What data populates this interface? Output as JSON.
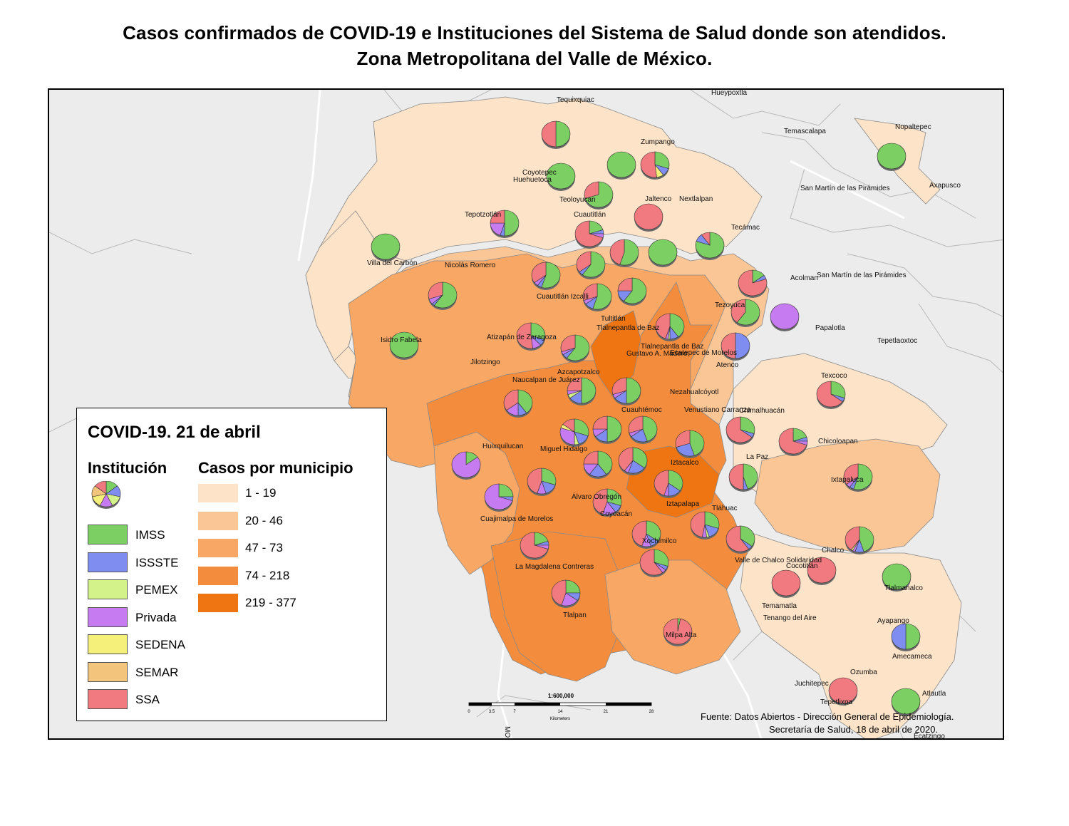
{
  "title": {
    "line1": "Casos confirmados de COVID-19 e Instituciones del Sistema de Salud donde son atendidos.",
    "line2": "Zona Metropolitana del Valle de México."
  },
  "legend": {
    "title": "COVID-19. 21 de abril",
    "institution_header": "Institución",
    "cases_header": "Casos por municipio",
    "institutions": [
      {
        "label": "IMSS",
        "color": "#7ccf62"
      },
      {
        "label": "ISSSTE",
        "color": "#7f8df0"
      },
      {
        "label": "PEMEX",
        "color": "#d4f28a"
      },
      {
        "label": "Privada",
        "color": "#c77bf0"
      },
      {
        "label": "SEDENA",
        "color": "#f5f07a"
      },
      {
        "label": "SEMAR",
        "color": "#f2c47c"
      },
      {
        "label": "SSA",
        "color": "#f07a80"
      }
    ],
    "case_classes": [
      {
        "label": "1 - 19",
        "color": "#fde3c8"
      },
      {
        "label": "20 - 46",
        "color": "#fbc695"
      },
      {
        "label": "47 - 73",
        "color": "#f9a765"
      },
      {
        "label": "74 - 218",
        "color": "#f48c3d"
      },
      {
        "label": "219 - 377",
        "color": "#ee7512"
      }
    ]
  },
  "scale": {
    "ratio": "1:600,000",
    "ticks": [
      "0",
      "3.5",
      "7",
      "14",
      "21",
      "28"
    ],
    "unit": "Kilometers"
  },
  "source": {
    "line1": "Fuente: Datos Abiertos - Dirección General de Epidemiología.",
    "line2": "Secretaría de Salud, 18 de abril de 2020."
  },
  "place_names": {
    "tequixquiac": "Tequixquiac",
    "hueypoxtla": "Hueypoxtla",
    "temascalapa": "Temascalapa",
    "nopaltepec": "Nopaltepec",
    "zumpango": "Zumpango",
    "coyotepec": "Coyotepec",
    "huehuetoca": "Huehuetoca",
    "teoloyucan": "Teoloyucan",
    "jaltenco": "Jaltenco",
    "nextlalpan": "Nextlalpan",
    "san_martin_1": "San Martín de las Pirámides",
    "axapusco": "Axapusco",
    "tepotzotlan": "Tepotzotlán",
    "cuautitlan": "Cuautitlán",
    "tecamac": "Tecámac",
    "villa_del_carbon": "Villa del Carbón",
    "nicolas_romero": "Nicolás Romero",
    "acolman": "Acolman",
    "san_martin_2": "San Martín de las Pirámides",
    "cuautitlan_izcalli": "Cuautitlán Izcalli",
    "tezoyuca": "Tezoyuca",
    "papalotla": "Papalotla",
    "tultitlan": "Tultitlán",
    "tlalnepantla_1": "Tlalnepantla de Baz",
    "tlalnepantla_2": "Tlalnepantla de Baz",
    "atizapan": "Atizapán de Zaragoza",
    "ecatepec": "Ecatepec de Morelos",
    "tepetlaoxtoc": "Tepetlaoxtoc",
    "isidro_fabela": "Isidro Fabela",
    "jilotzingo": "Jilotzingo",
    "gustavo_madero": "Gustavo A. Madero",
    "atenco": "Atenco",
    "naucalpan": "Naucalpan de Juárez",
    "azcapotzalco": "Azcapotzalco",
    "texcoco": "Texcoco",
    "nezahualcoyotl": "Nezahualcóyotl",
    "cuauhtemoc": "Cuauhtémoc",
    "venustiano_carranza": "Venustiano Carranza",
    "chimalhuacan": "Chimalhuacán",
    "huixquilucan": "Huixquilucan",
    "miguel_hidalgo": "Miguel Hidalgo",
    "chicoloapan": "Chicoloapan",
    "la_paz": "La Paz",
    "iztacalco": "Iztacalco",
    "ixtapaluca": "Ixtapaluca",
    "alvaro_obregon": "Álvaro Obregón",
    "iztapalapa": "Iztapalapa",
    "cuajimalpa": "Cuajimalpa de Morelos",
    "coyoacan": "Coyoacán",
    "tlahuac": "Tláhuac",
    "xochimilco": "Xochimilco",
    "chalco": "Chalco",
    "magdalena": "La Magdalena Contreras",
    "valle_chalco": "Valle de Chalco Solidaridad",
    "cocotitlan": "Cocotitlán",
    "tlalmanalco": "Tlalmanalco",
    "tlalpan": "Tlalpan",
    "temamatla": "Temamatla",
    "tenango": "Tenango del Aire",
    "ayapango": "Ayapango",
    "milpa_alta": "Milpa Alta",
    "amecameca": "Amecameca",
    "ozumba": "Ozumba",
    "juchitepec": "Juchitepec",
    "atlautla": "Atlautla",
    "tepetlixpa": "Tepetlixpa",
    "ecatzingo": "Ecatzingo",
    "road": "MOR"
  },
  "municipalities": [
    {
      "key": "tequixquiac",
      "cls": 0,
      "shares": [
        0.5,
        0,
        0,
        0,
        0,
        0,
        0.5
      ]
    },
    {
      "key": "zumpango_a",
      "cls": 0,
      "shares": [
        1,
        0,
        0,
        0,
        0,
        0,
        0
      ]
    },
    {
      "key": "zumpango_b",
      "cls": 1,
      "shares": [
        0.3,
        0.1,
        0,
        0,
        0.08,
        0,
        0.52
      ]
    },
    {
      "key": "nopaltepec",
      "cls": 0,
      "shares": [
        1,
        0,
        0,
        0,
        0,
        0,
        0
      ]
    },
    {
      "key": "coyotepec",
      "cls": 0,
      "shares": [
        1,
        0,
        0,
        0,
        0,
        0,
        0
      ]
    },
    {
      "key": "teoloyucan",
      "cls": 0,
      "shares": [
        0.7,
        0,
        0,
        0,
        0,
        0,
        0.3
      ]
    },
    {
      "key": "jaltenco",
      "cls": 0,
      "shares": [
        0,
        0,
        0,
        0,
        0,
        0,
        1
      ]
    },
    {
      "key": "tepotzotlan",
      "cls": 0,
      "shares": [
        0.5,
        0.05,
        0,
        0.2,
        0,
        0,
        0.25
      ]
    },
    {
      "key": "cuautitlan",
      "cls": 1,
      "shares": [
        0.2,
        0.05,
        0,
        0.05,
        0,
        0,
        0.7
      ]
    },
    {
      "key": "tecamac",
      "cls": 2,
      "shares": [
        0.8,
        0.1,
        0,
        0,
        0,
        0,
        0.1
      ]
    },
    {
      "key": "villa_del_carbon",
      "cls": 0,
      "shares": [
        1,
        0,
        0,
        0,
        0,
        0,
        0
      ]
    },
    {
      "key": "nextlalpan_a",
      "cls": 0,
      "shares": [
        0.55,
        0,
        0,
        0,
        0,
        0,
        0.45
      ]
    },
    {
      "key": "nextlalpan_b",
      "cls": 0,
      "shares": [
        1,
        0,
        0,
        0,
        0,
        0,
        0
      ]
    },
    {
      "key": "nicolas_romero",
      "cls": 2,
      "shares": [
        0.6,
        0.03,
        0,
        0.07,
        0,
        0,
        0.3
      ]
    },
    {
      "key": "cuautitlan_izcalli",
      "cls": 3,
      "shares": [
        0.55,
        0.05,
        0,
        0.05,
        0,
        0,
        0.35
      ]
    },
    {
      "key": "tultitlan_a",
      "cls": 3,
      "shares": [
        0.6,
        0.05,
        0,
        0,
        0,
        0,
        0.35
      ]
    },
    {
      "key": "tultitlan_b",
      "cls": 3,
      "shares": [
        0.6,
        0.15,
        0,
        0,
        0,
        0,
        0.25
      ]
    },
    {
      "key": "tultitlan_c",
      "cls": 3,
      "shares": [
        0.55,
        0.1,
        0,
        0.05,
        0,
        0,
        0.3
      ]
    },
    {
      "key": "acolman",
      "cls": 0,
      "shares": [
        0.15,
        0.05,
        0,
        0,
        0,
        0,
        0.8
      ]
    },
    {
      "key": "tezoyuca",
      "cls": 0,
      "shares": [
        0.6,
        0,
        0,
        0,
        0,
        0,
        0.4
      ]
    },
    {
      "key": "papalotla",
      "cls": 0,
      "shares": [
        0,
        0,
        0,
        1,
        0,
        0,
        0
      ]
    },
    {
      "key": "atizapan",
      "cls": 3,
      "shares": [
        0.3,
        0.08,
        0,
        0.1,
        0,
        0,
        0.52
      ]
    },
    {
      "key": "tlalnepantla",
      "cls": 3,
      "shares": [
        0.6,
        0.06,
        0,
        0.04,
        0,
        0,
        0.3
      ]
    },
    {
      "key": "ecatepec",
      "cls": 3,
      "shares": [
        0.4,
        0.1,
        0.02,
        0.03,
        0,
        0,
        0.45
      ]
    },
    {
      "key": "atenco",
      "cls": 0,
      "shares": [
        0,
        0.5,
        0,
        0,
        0,
        0,
        0.5
      ]
    },
    {
      "key": "isidro_fabela",
      "cls": 0,
      "shares": [
        1,
        0,
        0,
        0,
        0,
        0,
        0
      ]
    },
    {
      "key": "naucalpan",
      "cls": 3,
      "shares": [
        0.4,
        0.1,
        0,
        0.15,
        0,
        0,
        0.35
      ]
    },
    {
      "key": "azcapotzalco",
      "cls": 3,
      "shares": [
        0.5,
        0.15,
        0.05,
        0.05,
        0,
        0,
        0.25
      ]
    },
    {
      "key": "gustavo_madero",
      "cls": 4,
      "shares": [
        0.5,
        0.15,
        0,
        0.05,
        0,
        0,
        0.3
      ]
    },
    {
      "key": "texcoco",
      "cls": 1,
      "shares": [
        0.3,
        0.05,
        0,
        0,
        0,
        0,
        0.65
      ]
    },
    {
      "key": "miguel_hidalgo_a",
      "cls": 3,
      "shares": [
        0.3,
        0.15,
        0.05,
        0.3,
        0.05,
        0,
        0.15
      ]
    },
    {
      "key": "cuauhtemoc_a",
      "cls": 3,
      "shares": [
        0.5,
        0.15,
        0,
        0.1,
        0,
        0,
        0.25
      ]
    },
    {
      "key": "cuauhtemoc_b",
      "cls": 3,
      "shares": [
        0.45,
        0.2,
        0,
        0.05,
        0,
        0,
        0.3
      ]
    },
    {
      "key": "venustiano_carranza",
      "cls": 3,
      "shares": [
        0.45,
        0.25,
        0,
        0,
        0,
        0,
        0.3
      ]
    },
    {
      "key": "chimalhuacan",
      "cls": 2,
      "shares": [
        0.3,
        0.05,
        0,
        0,
        0,
        0,
        0.65
      ]
    },
    {
      "key": "huixquilucan",
      "cls": 2,
      "shares": [
        0.15,
        0,
        0,
        0.85,
        0,
        0,
        0
      ]
    },
    {
      "key": "chicoloapan",
      "cls": 1,
      "shares": [
        0.2,
        0.05,
        0,
        0.05,
        0,
        0,
        0.7
      ]
    },
    {
      "key": "la_paz",
      "cls": 1,
      "shares": [
        0.45,
        0.05,
        0,
        0,
        0,
        0,
        0.5
      ]
    },
    {
      "key": "benito_juarez",
      "cls": 3,
      "shares": [
        0.4,
        0.2,
        0,
        0.15,
        0,
        0,
        0.25
      ]
    },
    {
      "key": "iztacalco",
      "cls": 3,
      "shares": [
        0.35,
        0.2,
        0,
        0.05,
        0,
        0,
        0.4
      ]
    },
    {
      "key": "ixtapaluca",
      "cls": 1,
      "shares": [
        0.55,
        0.05,
        0,
        0.05,
        0,
        0,
        0.35
      ]
    },
    {
      "key": "miguel_hidalgo_b",
      "cls": 3,
      "shares": [
        0.3,
        0.15,
        0,
        0.1,
        0,
        0,
        0.45
      ]
    },
    {
      "key": "cuajimalpa",
      "cls": 2,
      "shares": [
        0.25,
        0.05,
        0,
        0.7,
        0,
        0,
        0
      ]
    },
    {
      "key": "iztapalapa",
      "cls": 4,
      "shares": [
        0.35,
        0.15,
        0,
        0.05,
        0,
        0,
        0.45
      ]
    },
    {
      "key": "alvaro_obregon",
      "cls": 3,
      "shares": [
        0.3,
        0.1,
        0,
        0.15,
        0,
        0,
        0.45
      ]
    },
    {
      "key": "tlahuac",
      "cls": 2,
      "shares": [
        0.3,
        0.15,
        0.03,
        0.05,
        0,
        0,
        0.47
      ]
    },
    {
      "key": "coyoacan",
      "cls": 3,
      "shares": [
        0.35,
        0.1,
        0,
        0.1,
        0,
        0,
        0.45
      ]
    },
    {
      "key": "valle_chalco",
      "cls": 2,
      "shares": [
        0.35,
        0.05,
        0,
        0,
        0,
        0,
        0.6
      ]
    },
    {
      "key": "chalco_a",
      "cls": 1,
      "shares": [
        0.45,
        0.1,
        0,
        0.03,
        0.02,
        0,
        0.4
      ]
    },
    {
      "key": "magdalena",
      "cls": 3,
      "shares": [
        0.2,
        0.05,
        0,
        0.05,
        0,
        0,
        0.7
      ]
    },
    {
      "key": "xochimilco",
      "cls": 3,
      "shares": [
        0.3,
        0.05,
        0,
        0.05,
        0,
        0,
        0.6
      ]
    },
    {
      "key": "tlalmanalco",
      "cls": 0,
      "shares": [
        1,
        0,
        0,
        0,
        0,
        0,
        0
      ]
    },
    {
      "key": "cocotitlan",
      "cls": 0,
      "shares": [
        0,
        0,
        0,
        0,
        0,
        0,
        1
      ]
    },
    {
      "key": "chalco_b",
      "cls": 1,
      "shares": [
        0,
        0,
        0,
        0,
        0,
        0,
        1
      ]
    },
    {
      "key": "tlalpan",
      "cls": 3,
      "shares": [
        0.25,
        0.1,
        0,
        0.2,
        0,
        0,
        0.45
      ]
    },
    {
      "key": "milpa_alta",
      "cls": 2,
      "shares": [
        0.03,
        0,
        0,
        0,
        0,
        0,
        0.97
      ]
    },
    {
      "key": "amecameca",
      "cls": 0,
      "shares": [
        0.5,
        0.5,
        0,
        0,
        0,
        0,
        0
      ]
    },
    {
      "key": "ozumba",
      "cls": 0,
      "shares": [
        0,
        0,
        0,
        0,
        0,
        0,
        1
      ]
    },
    {
      "key": "atlautla",
      "cls": 0,
      "shares": [
        1,
        0,
        0,
        0,
        0,
        0,
        0
      ]
    }
  ]
}
